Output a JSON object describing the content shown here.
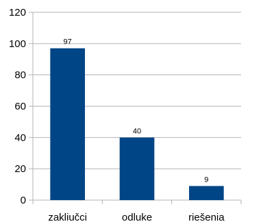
{
  "chart_data": {
    "type": "bar",
    "categories": [
      "zaključci",
      "odluke",
      "rješenja"
    ],
    "values": [
      97,
      40,
      9
    ],
    "ylim": [
      0,
      120
    ],
    "yticks": [
      0,
      20,
      40,
      60,
      80,
      100,
      120
    ],
    "bar_color": "#004586",
    "axis_color": "#b3b3b3",
    "grid": true,
    "data_labels": true,
    "legend": "none"
  }
}
